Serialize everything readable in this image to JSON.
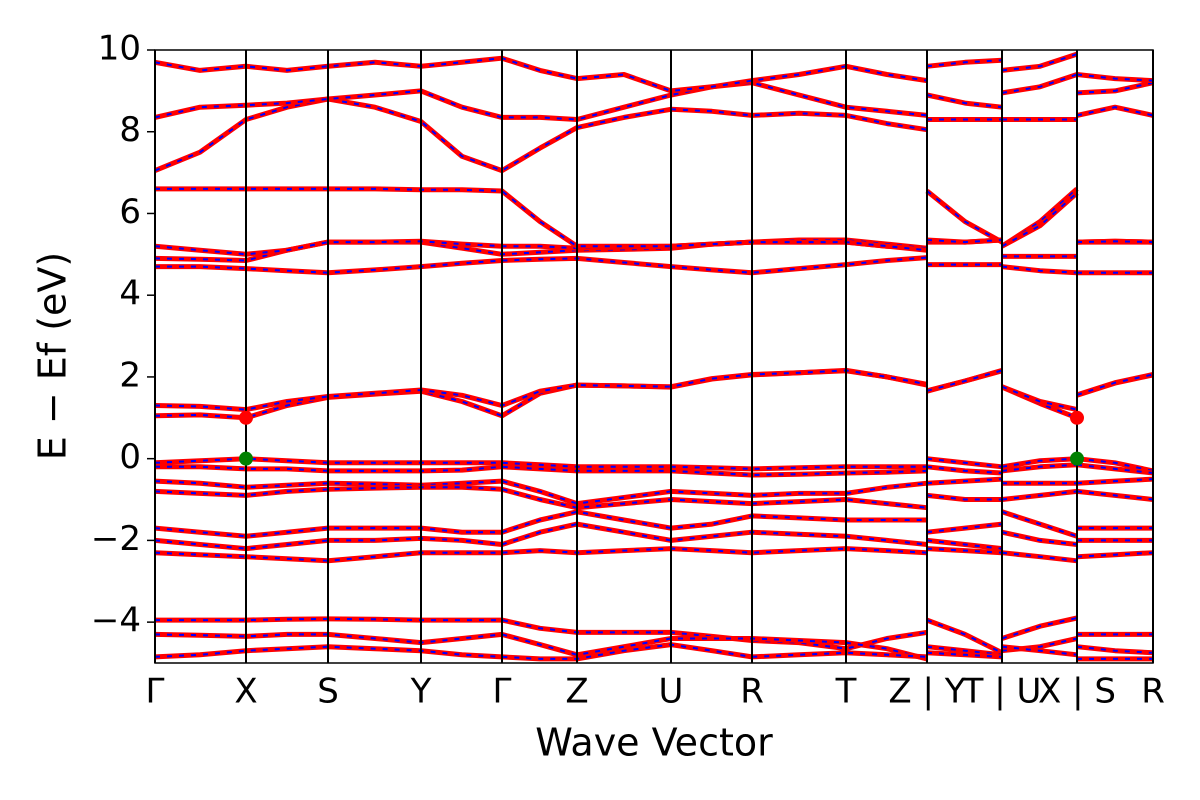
{
  "chart_data": {
    "type": "line",
    "xlabel": "Wave Vector",
    "ylabel": "E − Ef (eV)",
    "xlim": [
      0,
      9.98
    ],
    "ylim": [
      -5,
      10
    ],
    "xticks": [
      {
        "value": 0,
        "label": "Γ"
      },
      {
        "value": 0.91,
        "label": "X"
      },
      {
        "value": 1.73,
        "label": "S"
      },
      {
        "value": 2.66,
        "label": "Y"
      },
      {
        "value": 3.47,
        "label": "Γ"
      },
      {
        "value": 4.22,
        "label": "Z"
      },
      {
        "value": 5.16,
        "label": "U"
      },
      {
        "value": 5.97,
        "label": "R"
      },
      {
        "value": 6.91,
        "label": "T"
      },
      {
        "value": 7.72,
        "label": "Z | Y"
      },
      {
        "value": 8.47,
        "label": "T | U"
      },
      {
        "value": 9.22,
        "label": "X | S"
      },
      {
        "value": 9.98,
        "label": "R"
      }
    ],
    "yticks": [
      {
        "value": -4,
        "label": "−4"
      },
      {
        "value": -2,
        "label": "−2"
      },
      0,
      2,
      4,
      6,
      8,
      10
    ],
    "overlay_color": "#0000ff",
    "x": [
      0,
      0.45,
      0.91,
      1.32,
      1.73,
      2.2,
      2.66,
      3.07,
      3.47,
      3.85,
      4.22,
      4.69,
      5.16,
      5.57,
      5.97,
      6.44,
      6.91,
      7.32,
      7.72,
      7.72,
      7.72,
      8.1,
      8.47,
      8.47,
      8.47,
      8.85,
      9.22,
      9.22,
      9.22,
      9.6,
      9.98
    ],
    "series": [
      {
        "color": "#ff0000",
        "values": [
          1.05,
          1.07,
          1.0,
          1.3,
          1.5,
          1.58,
          1.65,
          1.4,
          1.05,
          1.6,
          1.8,
          1.78,
          1.75,
          1.95,
          2.05,
          2.1,
          2.15,
          2.0,
          1.8,
          null,
          1.65,
          1.9,
          2.15,
          null,
          1.75,
          1.35,
          1.0,
          null,
          1.55,
          1.85,
          2.05
        ]
      },
      {
        "color": "#ff0000",
        "values": [
          1.3,
          1.28,
          1.2,
          1.4,
          1.52,
          1.6,
          1.68,
          1.55,
          1.3,
          1.65,
          1.8,
          1.78,
          1.76,
          1.96,
          2.06,
          2.1,
          2.16,
          2.0,
          1.82,
          null,
          1.66,
          1.9,
          2.16,
          null,
          1.76,
          1.4,
          1.2,
          null,
          1.56,
          1.86,
          2.06
        ]
      },
      {
        "color": "#ff0000",
        "values": [
          4.7,
          4.7,
          4.65,
          4.6,
          4.55,
          4.62,
          4.7,
          4.78,
          4.85,
          4.88,
          4.9,
          4.8,
          4.7,
          4.62,
          4.55,
          4.65,
          4.75,
          4.85,
          4.92,
          null,
          4.75,
          4.75,
          4.75,
          null,
          4.7,
          4.6,
          4.55,
          null,
          4.55,
          4.55,
          4.55
        ]
      },
      {
        "color": "#ff0000",
        "values": [
          4.9,
          4.88,
          4.85,
          5.1,
          5.3,
          5.3,
          5.3,
          5.15,
          5.0,
          5.05,
          5.1,
          5.12,
          5.15,
          5.25,
          5.3,
          5.3,
          5.3,
          5.2,
          5.15,
          null,
          5.3,
          5.3,
          5.35,
          null,
          4.95,
          4.95,
          4.95,
          null,
          5.3,
          5.3,
          5.3
        ]
      },
      {
        "color": "#ff0000",
        "values": [
          5.2,
          5.1,
          5.0,
          5.1,
          5.3,
          5.3,
          5.32,
          5.25,
          5.2,
          5.2,
          5.15,
          5.18,
          5.2,
          5.25,
          5.3,
          5.35,
          5.35,
          5.25,
          5.15,
          null,
          6.55,
          5.8,
          5.3,
          null,
          5.2,
          5.8,
          6.6,
          null,
          5.3,
          5.32,
          5.3
        ]
      },
      {
        "color": "#ff0000",
        "values": [
          6.6,
          6.6,
          6.6,
          6.6,
          6.6,
          6.6,
          6.58,
          6.58,
          6.55,
          5.8,
          5.2,
          5.2,
          5.2,
          5.25,
          5.3,
          5.3,
          5.3,
          5.2,
          5.1,
          null,
          5.35,
          5.3,
          5.35,
          null,
          5.2,
          5.7,
          6.5,
          null,
          5.3,
          5.32,
          5.3
        ]
      },
      {
        "color": "#ff0000",
        "values": [
          7.05,
          7.5,
          8.3,
          8.6,
          8.8,
          8.6,
          8.25,
          7.4,
          7.05,
          7.6,
          8.1,
          8.35,
          8.55,
          8.5,
          8.4,
          8.45,
          8.4,
          8.2,
          8.05,
          null,
          8.3,
          8.3,
          8.3,
          null,
          8.3,
          8.3,
          8.3,
          null,
          8.4,
          8.6,
          8.4
        ]
      },
      {
        "color": "#ff0000",
        "values": [
          8.35,
          8.6,
          8.65,
          8.7,
          8.8,
          8.9,
          9.0,
          8.6,
          8.35,
          8.35,
          8.3,
          8.6,
          8.9,
          9.1,
          9.2,
          8.9,
          8.6,
          8.5,
          8.4,
          null,
          8.9,
          8.7,
          8.6,
          null,
          8.95,
          9.1,
          9.4,
          null,
          8.95,
          9.0,
          9.2
        ]
      },
      {
        "color": "#ff0000",
        "values": [
          9.7,
          9.5,
          9.6,
          9.5,
          9.6,
          9.7,
          9.6,
          9.7,
          9.8,
          9.5,
          9.3,
          9.4,
          9.0,
          9.1,
          9.25,
          9.4,
          9.6,
          9.4,
          9.25,
          null,
          9.6,
          9.7,
          9.75,
          null,
          9.5,
          9.6,
          9.9,
          null,
          9.4,
          9.3,
          9.25
        ]
      },
      {
        "color": "#ff0000",
        "values": [
          -0.1,
          -0.05,
          0.0,
          -0.05,
          -0.1,
          -0.1,
          -0.1,
          -0.1,
          -0.1,
          -0.15,
          -0.2,
          -0.2,
          -0.2,
          -0.22,
          -0.25,
          -0.22,
          -0.2,
          -0.2,
          -0.2,
          null,
          0.0,
          -0.1,
          -0.2,
          null,
          -0.2,
          -0.05,
          0.0,
          null,
          0.0,
          -0.1,
          -0.3
        ]
      },
      {
        "color": "#ff0000",
        "values": [
          -0.2,
          -0.2,
          -0.25,
          -0.25,
          -0.3,
          -0.3,
          -0.3,
          -0.28,
          -0.2,
          -0.25,
          -0.3,
          -0.3,
          -0.3,
          -0.35,
          -0.4,
          -0.38,
          -0.35,
          -0.33,
          -0.3,
          null,
          -0.2,
          -0.3,
          -0.35,
          null,
          -0.3,
          -0.2,
          -0.15,
          null,
          -0.15,
          -0.25,
          -0.35
        ]
      },
      {
        "color": "#ff0000",
        "values": [
          -0.55,
          -0.6,
          -0.7,
          -0.65,
          -0.6,
          -0.62,
          -0.65,
          -0.6,
          -0.55,
          -0.8,
          -1.1,
          -0.95,
          -0.8,
          -0.85,
          -0.9,
          -0.85,
          -0.85,
          -0.7,
          -0.6,
          null,
          -0.6,
          -0.55,
          -0.5,
          null,
          -0.6,
          -0.6,
          -0.6,
          null,
          -0.6,
          -0.55,
          -0.5
        ]
      },
      {
        "color": "#ff0000",
        "values": [
          -0.8,
          -0.85,
          -0.9,
          -0.8,
          -0.75,
          -0.72,
          -0.7,
          -0.7,
          -0.75,
          -1.0,
          -1.2,
          -1.1,
          -1.0,
          -1.05,
          -1.1,
          -1.05,
          -1.0,
          -1.1,
          -1.2,
          null,
          -0.9,
          -1.0,
          -1.0,
          null,
          -1.0,
          -0.9,
          -0.8,
          null,
          -0.8,
          -0.9,
          -1.0
        ]
      },
      {
        "color": "#ff0000",
        "values": [
          -1.7,
          -1.8,
          -1.9,
          -1.8,
          -1.7,
          -1.7,
          -1.7,
          -1.8,
          -1.8,
          -1.5,
          -1.3,
          -1.5,
          -1.7,
          -1.6,
          -1.4,
          -1.45,
          -1.5,
          -1.5,
          -1.5,
          null,
          -1.8,
          -1.7,
          -1.6,
          null,
          -1.3,
          -1.6,
          -1.9,
          null,
          -1.7,
          -1.7,
          -1.7
        ]
      },
      {
        "color": "#ff0000",
        "values": [
          -2.0,
          -2.1,
          -2.2,
          -2.1,
          -2.0,
          -2.0,
          -1.95,
          -2.0,
          -2.1,
          -1.8,
          -1.6,
          -1.8,
          -2.0,
          -1.9,
          -1.8,
          -1.85,
          -1.9,
          -2.0,
          -2.1,
          null,
          -2.0,
          -2.1,
          -2.2,
          null,
          -1.8,
          -2.0,
          -2.1,
          null,
          -2.0,
          -2.0,
          -2.0
        ]
      },
      {
        "color": "#ff0000",
        "values": [
          -2.3,
          -2.35,
          -2.4,
          -2.45,
          -2.5,
          -2.4,
          -2.3,
          -2.3,
          -2.3,
          -2.25,
          -2.3,
          -2.25,
          -2.2,
          -2.25,
          -2.3,
          -2.25,
          -2.2,
          -2.25,
          -2.3,
          null,
          -2.2,
          -2.25,
          -2.3,
          null,
          -2.3,
          -2.4,
          -2.5,
          null,
          -2.4,
          -2.35,
          -2.3
        ]
      },
      {
        "color": "#ff0000",
        "values": [
          -3.95,
          -3.95,
          -3.95,
          -3.93,
          -3.92,
          -3.93,
          -3.95,
          -3.95,
          -3.95,
          -4.15,
          -4.25,
          -4.25,
          -4.25,
          -4.35,
          -4.45,
          -4.5,
          -4.65,
          -4.4,
          -4.25,
          null,
          -3.95,
          -4.3,
          -4.75,
          null,
          -4.4,
          -4.1,
          -3.9,
          null,
          -4.3,
          -4.3,
          -4.3
        ]
      },
      {
        "color": "#ff0000",
        "values": [
          -4.3,
          -4.32,
          -4.35,
          -4.3,
          -4.3,
          -4.4,
          -4.5,
          -4.4,
          -4.3,
          -4.55,
          -4.8,
          -4.6,
          -4.4,
          -4.4,
          -4.4,
          -4.45,
          -4.5,
          -4.65,
          -4.9,
          null,
          -4.6,
          -4.7,
          -4.8,
          null,
          -4.7,
          -4.6,
          -4.4,
          null,
          -4.6,
          -4.7,
          -4.75
        ]
      },
      {
        "color": "#ff0000",
        "values": [
          -4.85,
          -4.8,
          -4.7,
          -4.65,
          -4.6,
          -4.65,
          -4.7,
          -4.8,
          -4.85,
          -4.9,
          -4.9,
          -4.7,
          -4.55,
          -4.7,
          -4.85,
          -4.8,
          -4.75,
          -4.8,
          -4.85,
          null,
          -4.75,
          -4.8,
          -4.85,
          null,
          -4.6,
          -4.7,
          -4.8,
          null,
          -4.9,
          -4.9,
          -4.9
        ]
      }
    ],
    "markers": [
      {
        "x": 0.91,
        "y": 1.0,
        "color": "#ff0000"
      },
      {
        "x": 9.22,
        "y": 1.0,
        "color": "#ff0000"
      },
      {
        "x": 0.91,
        "y": 0,
        "color": "#008000"
      },
      {
        "x": 9.22,
        "y": 0,
        "color": "#008000"
      }
    ]
  }
}
